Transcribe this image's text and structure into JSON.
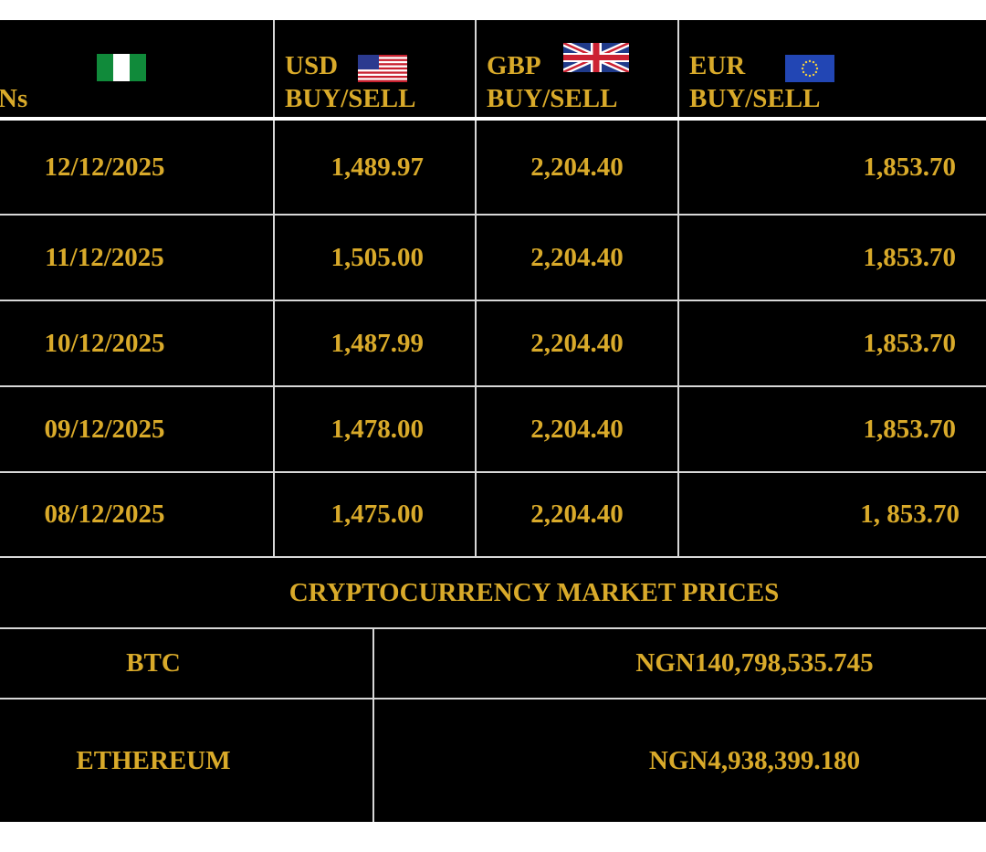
{
  "header": {
    "col0_fragment": "Ns",
    "usd": {
      "code": "USD",
      "sub": "BUY/SELL"
    },
    "gbp": {
      "code": "GBP",
      "sub": "BUY/SELL"
    },
    "eur": {
      "code": "EUR",
      "sub": "BUY/SELL"
    }
  },
  "rates": [
    {
      "date": "12/12/2025",
      "usd": "1,489.97",
      "gbp": "2,204.40",
      "eur": "1,853.70"
    },
    {
      "date": "11/12/2025",
      "usd": "1,505.00",
      "gbp": "2,204.40",
      "eur": "1,853.70"
    },
    {
      "date": "10/12/2025",
      "usd": "1,487.99",
      "gbp": "2,204.40",
      "eur": "1,853.70"
    },
    {
      "date": "09/12/2025",
      "usd": "1,478.00",
      "gbp": "2,204.40",
      "eur": "1,853.70"
    },
    {
      "date": "08/12/2025",
      "usd": "1,475.00",
      "gbp": "2,204.40",
      "eur": "1, 853.70"
    }
  ],
  "crypto": {
    "title": "CRYPTOCURRENCY MARKET PRICES",
    "items": [
      {
        "name": "BTC",
        "price": "NGN140,798,535.745"
      },
      {
        "name": "ETHEREUM",
        "price": "NGN4,938,399.180"
      }
    ]
  },
  "colors": {
    "text_gold": "#d9aa2a",
    "background": "#000000",
    "grid": "#d8d8d8"
  },
  "icons": [
    "nigeria-flag-icon",
    "usa-flag-icon",
    "uk-flag-icon",
    "eu-flag-icon"
  ]
}
